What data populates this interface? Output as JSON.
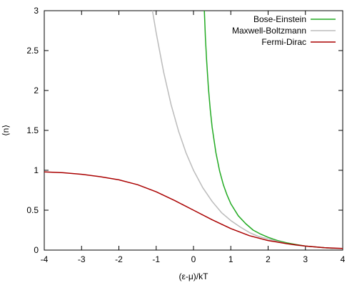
{
  "chart_data": {
    "type": "line",
    "xlabel": "(ε-μ)/kT",
    "ylabel": "⟨n⟩",
    "xlim": [
      -4,
      4
    ],
    "ylim": [
      0,
      3
    ],
    "xticks": [
      "-4",
      "-3",
      "-2",
      "-1",
      "0",
      "1",
      "2",
      "3",
      "4"
    ],
    "yticks": [
      "0",
      "0.5",
      "1",
      "1.5",
      "2",
      "2.5",
      "3"
    ],
    "legend_position": "top-right",
    "series": [
      {
        "name": "Bose-Einstein",
        "color": "#22aa22",
        "x": [
          0.29,
          0.32,
          0.35,
          0.4,
          0.45,
          0.5,
          0.6,
          0.7,
          0.8,
          0.9,
          1.0,
          1.2,
          1.4,
          1.6,
          1.8,
          2.0,
          2.25,
          2.5,
          2.75,
          3.0,
          3.25,
          3.5,
          3.75,
          4.0
        ],
        "y": [
          3.0,
          2.66,
          2.39,
          2.03,
          1.76,
          1.54,
          1.22,
          0.99,
          0.82,
          0.69,
          0.58,
          0.43,
          0.33,
          0.25,
          0.2,
          0.16,
          0.12,
          0.09,
          0.07,
          0.05,
          0.04,
          0.03,
          0.02,
          0.02
        ]
      },
      {
        "name": "Maxwell-Boltzmann",
        "color": "#bbbbbb",
        "x": [
          -1.1,
          -1.0,
          -0.8,
          -0.6,
          -0.4,
          -0.2,
          0.0,
          0.25,
          0.5,
          0.75,
          1.0,
          1.25,
          1.5,
          1.75,
          2.0,
          2.25,
          2.5,
          2.75,
          3.0,
          3.25,
          3.5,
          3.75,
          4.0
        ],
        "y": [
          3.0,
          2.72,
          2.23,
          1.82,
          1.49,
          1.22,
          1.0,
          0.78,
          0.61,
          0.47,
          0.37,
          0.29,
          0.22,
          0.17,
          0.14,
          0.11,
          0.08,
          0.06,
          0.05,
          0.04,
          0.03,
          0.02,
          0.02
        ]
      },
      {
        "name": "Fermi-Dirac",
        "color": "#aa0000",
        "x": [
          -4.0,
          -3.5,
          -3.0,
          -2.5,
          -2.0,
          -1.5,
          -1.0,
          -0.5,
          0.0,
          0.5,
          1.0,
          1.5,
          2.0,
          2.5,
          3.0,
          3.5,
          4.0
        ],
        "y": [
          0.98,
          0.97,
          0.95,
          0.92,
          0.88,
          0.82,
          0.73,
          0.62,
          0.5,
          0.38,
          0.27,
          0.18,
          0.12,
          0.08,
          0.05,
          0.03,
          0.02
        ]
      }
    ]
  }
}
